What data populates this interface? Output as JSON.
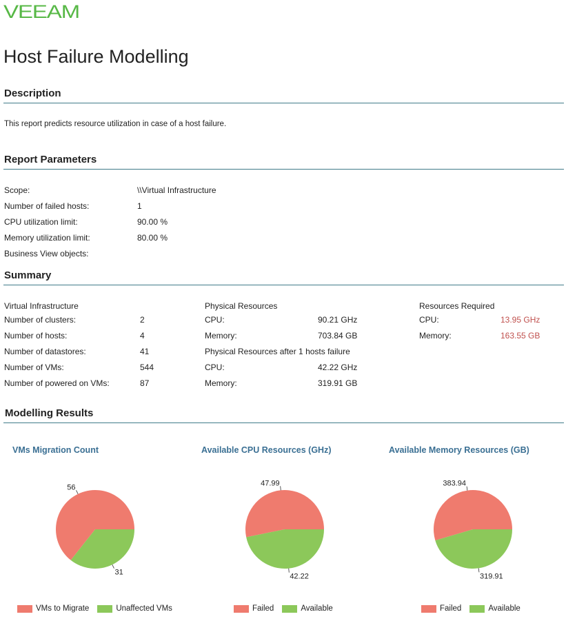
{
  "brand": {
    "logo_text": "VEEAM",
    "logo_color": "#57b846"
  },
  "title": "Host Failure Modelling",
  "description": {
    "heading": "Description",
    "text": "This report predicts resource utilization in case of a host failure."
  },
  "parameters": {
    "heading": "Report Parameters",
    "rows": [
      {
        "label": "Scope:",
        "value": "\\\\Virtual Infrastructure"
      },
      {
        "label": "Number of failed hosts:",
        "value": "1"
      },
      {
        "label": "CPU utilization limit:",
        "value": "90.00 %"
      },
      {
        "label": "Memory utilization limit:",
        "value": "80.00 %"
      },
      {
        "label": "Business View objects:",
        "value": ""
      }
    ]
  },
  "summary": {
    "heading": "Summary",
    "virtual": {
      "heading": "Virtual Infrastructure",
      "rows": [
        {
          "label": "Number of clusters:",
          "value": "2"
        },
        {
          "label": "Number of hosts:",
          "value": "4"
        },
        {
          "label": "Number of datastores:",
          "value": "41"
        },
        {
          "label": "Number of VMs:",
          "value": "544"
        },
        {
          "label": "Number of powered on VMs:",
          "value": "87"
        }
      ]
    },
    "physical": {
      "heading": "Physical Resources",
      "rows": [
        {
          "label": "CPU:",
          "value": "90.21 GHz"
        },
        {
          "label": "Memory:",
          "value": "703.84 GB"
        }
      ]
    },
    "physical_after": {
      "heading": "Physical Resources after  1 hosts failure",
      "rows": [
        {
          "label": "CPU:",
          "value": "42.22 GHz"
        },
        {
          "label": "Memory:",
          "value": "319.91 GB"
        }
      ]
    },
    "required": {
      "heading": "Resources Required",
      "rows": [
        {
          "label": "CPU:",
          "value": "13.95 GHz"
        },
        {
          "label": "Memory:",
          "value": "163.55 GB"
        }
      ]
    }
  },
  "results": {
    "heading": "Modelling Results"
  },
  "colors": {
    "red": "#ef7b6e",
    "green": "#8cc85a",
    "rule": "#3f7a88"
  },
  "chart_data": [
    {
      "type": "pie",
      "title": "VMs Migration Count",
      "slices": [
        {
          "name": "VMs to Migrate",
          "value": 56,
          "label": "56",
          "color": "#ef7b6e"
        },
        {
          "name": "Unaffected VMs",
          "value": 31,
          "label": "31",
          "color": "#8cc85a"
        }
      ],
      "legend": "bottom"
    },
    {
      "type": "pie",
      "title": "Available CPU Resources (GHz)",
      "slices": [
        {
          "name": "Failed",
          "value": 47.99,
          "label": "47.99",
          "color": "#ef7b6e"
        },
        {
          "name": "Available",
          "value": 42.22,
          "label": "42.22",
          "color": "#8cc85a"
        }
      ],
      "legend": "bottom"
    },
    {
      "type": "pie",
      "title": "Available Memory Resources (GB)",
      "slices": [
        {
          "name": "Failed",
          "value": 383.94,
          "label": "383.94",
          "color": "#ef7b6e"
        },
        {
          "name": "Available",
          "value": 319.91,
          "label": "319.91",
          "color": "#8cc85a"
        }
      ],
      "legend": "bottom"
    }
  ]
}
